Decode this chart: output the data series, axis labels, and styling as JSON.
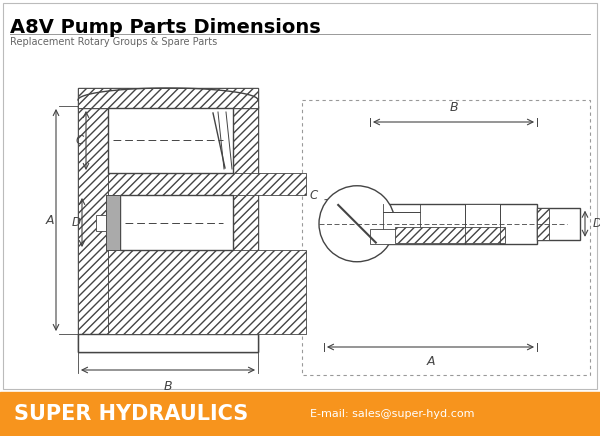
{
  "title_main": "A8V Pump Parts Dimensions",
  "title_sub": "Replacement Rotary Groups & Spare Parts",
  "footer_bg": "#F7941D",
  "footer_company": "SUPER HYDRAULICS",
  "footer_email": "E-mail: sales@super-hyd.com",
  "bg_color": "#FFFFFF",
  "drawing_color": "#444444",
  "title_color": "#000000",
  "footer_text_color": "#FFFFFF"
}
